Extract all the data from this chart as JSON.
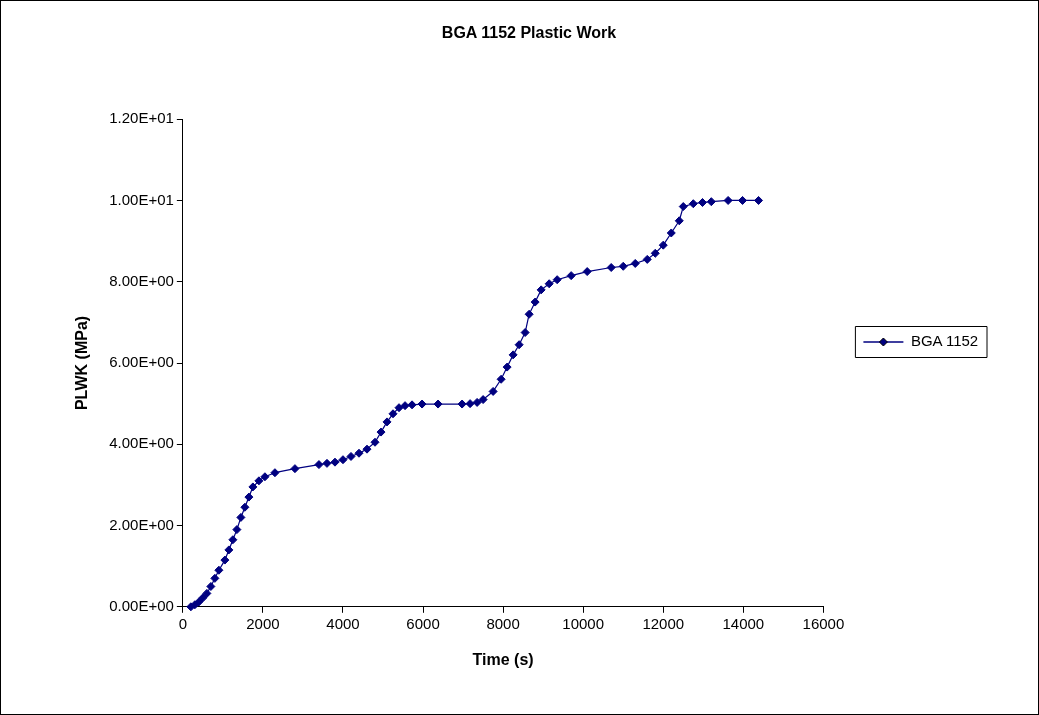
{
  "chart_data": {
    "type": "line",
    "title": "BGA 1152 Plastic Work",
    "xlabel": "Time (s)",
    "ylabel": "PLWK (MPa)",
    "series": [
      {
        "name": "BGA 1152",
        "color": "#000080",
        "x": [
          200,
          300,
          400,
          500,
          600,
          700,
          800,
          900,
          1050,
          1150,
          1250,
          1350,
          1450,
          1550,
          1650,
          1750,
          1900,
          2050,
          2300,
          2800,
          3400,
          3600,
          3800,
          4000,
          4200,
          4400,
          4600,
          4800,
          4950,
          5100,
          5250,
          5400,
          5550,
          5725,
          5975,
          6375,
          6975,
          7175,
          7350,
          7500,
          7750,
          7950,
          8100,
          8250,
          8400,
          8550,
          8650,
          8800,
          8950,
          9150,
          9350,
          9700,
          10100,
          10700,
          11000,
          11300,
          11600,
          11800,
          12000,
          12200,
          12400,
          12500,
          12750,
          12980,
          13200,
          13620,
          13980,
          14380
        ],
        "values": [
          0,
          0.05,
          0.12,
          0.22,
          0.33,
          0.5,
          0.7,
          0.9,
          1.15,
          1.4,
          1.65,
          1.9,
          2.2,
          2.45,
          2.7,
          2.95,
          3.1,
          3.2,
          3.3,
          3.4,
          3.5,
          3.53,
          3.56,
          3.62,
          3.7,
          3.78,
          3.88,
          4.05,
          4.3,
          4.55,
          4.75,
          4.9,
          4.95,
          4.97,
          4.99,
          4.99,
          4.99,
          5.0,
          5.03,
          5.1,
          5.3,
          5.6,
          5.9,
          6.2,
          6.45,
          6.75,
          7.2,
          7.5,
          7.8,
          7.95,
          8.05,
          8.15,
          8.25,
          8.35,
          8.38,
          8.45,
          8.55,
          8.7,
          8.9,
          9.2,
          9.5,
          9.85,
          9.92,
          9.95,
          9.97,
          10.0,
          10.0,
          10.0
        ]
      }
    ],
    "xlim": [
      0,
      16000
    ],
    "xticks": [
      0,
      2000,
      4000,
      6000,
      8000,
      10000,
      12000,
      14000,
      16000
    ],
    "ylim": [
      0,
      12
    ],
    "yticks": [
      {
        "value": 0,
        "label": "0.00E+00"
      },
      {
        "value": 2,
        "label": "2.00E+00"
      },
      {
        "value": 4,
        "label": "4.00E+00"
      },
      {
        "value": 6,
        "label": "6.00E+00"
      },
      {
        "value": 8,
        "label": "8.00E+00"
      },
      {
        "value": 10,
        "label": "1.00E+01"
      },
      {
        "value": 12,
        "label": "1.20E+01"
      }
    ],
    "grid": false,
    "legend": "right",
    "marker": "diamond",
    "line_style": "solid"
  }
}
